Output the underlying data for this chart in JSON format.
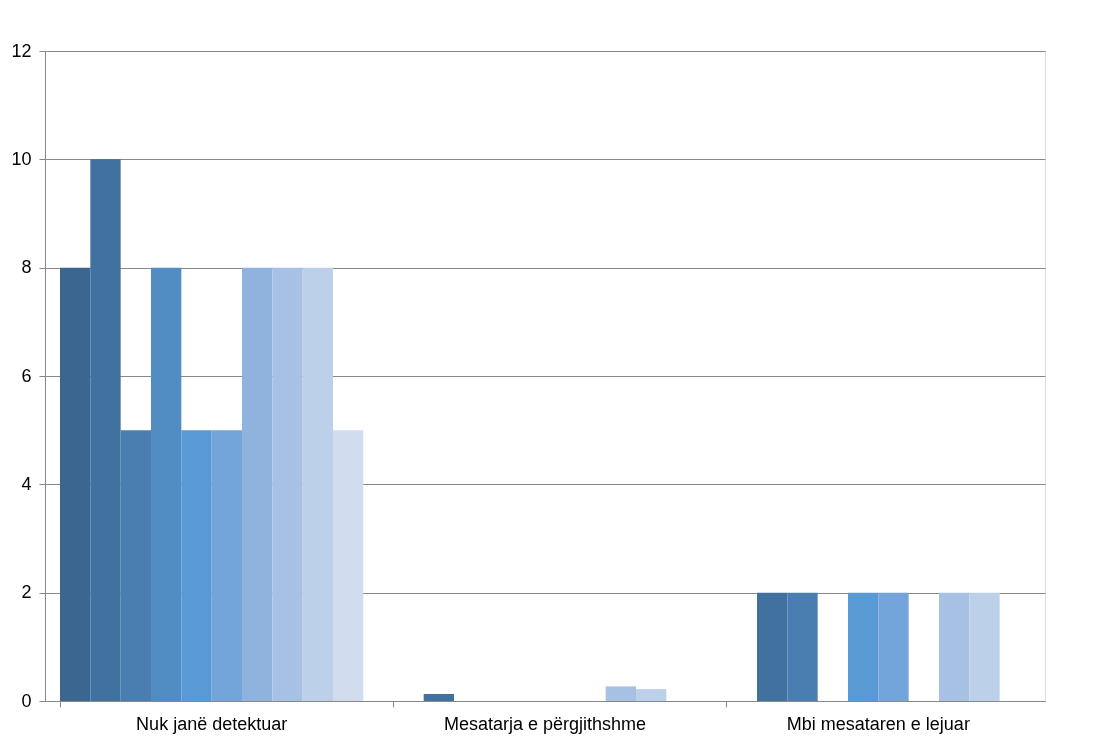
{
  "chart_data": {
    "type": "bar",
    "categories": [
      "Nuk janë detektuar",
      "Mesatarja e përgjithshme",
      "Mbi mesataren e lejuar"
    ],
    "series": [
      {
        "color": "#3a6690",
        "values": [
          8,
          0,
          0
        ]
      },
      {
        "color": "#41729f",
        "values": [
          10,
          0.13,
          2
        ]
      },
      {
        "color": "#4a7eb0",
        "values": [
          5,
          0,
          2
        ]
      },
      {
        "color": "#518cc3",
        "values": [
          8,
          0,
          0
        ]
      },
      {
        "color": "#5a9ad4",
        "values": [
          5,
          0,
          2
        ]
      },
      {
        "color": "#73a4da",
        "values": [
          5,
          0,
          2
        ]
      },
      {
        "color": "#90b3de",
        "values": [
          8,
          0,
          0
        ]
      },
      {
        "color": "#a7c1e4",
        "values": [
          8,
          0.27,
          2
        ]
      },
      {
        "color": "#bcd0ea",
        "values": [
          8,
          0.22,
          2
        ]
      },
      {
        "color": "#d1ddee",
        "values": [
          5,
          0,
          0
        ]
      }
    ],
    "ylim": [
      0,
      12
    ],
    "yticks": [
      0,
      2,
      4,
      6,
      8,
      10,
      12
    ],
    "grid": "y",
    "legend": false
  }
}
